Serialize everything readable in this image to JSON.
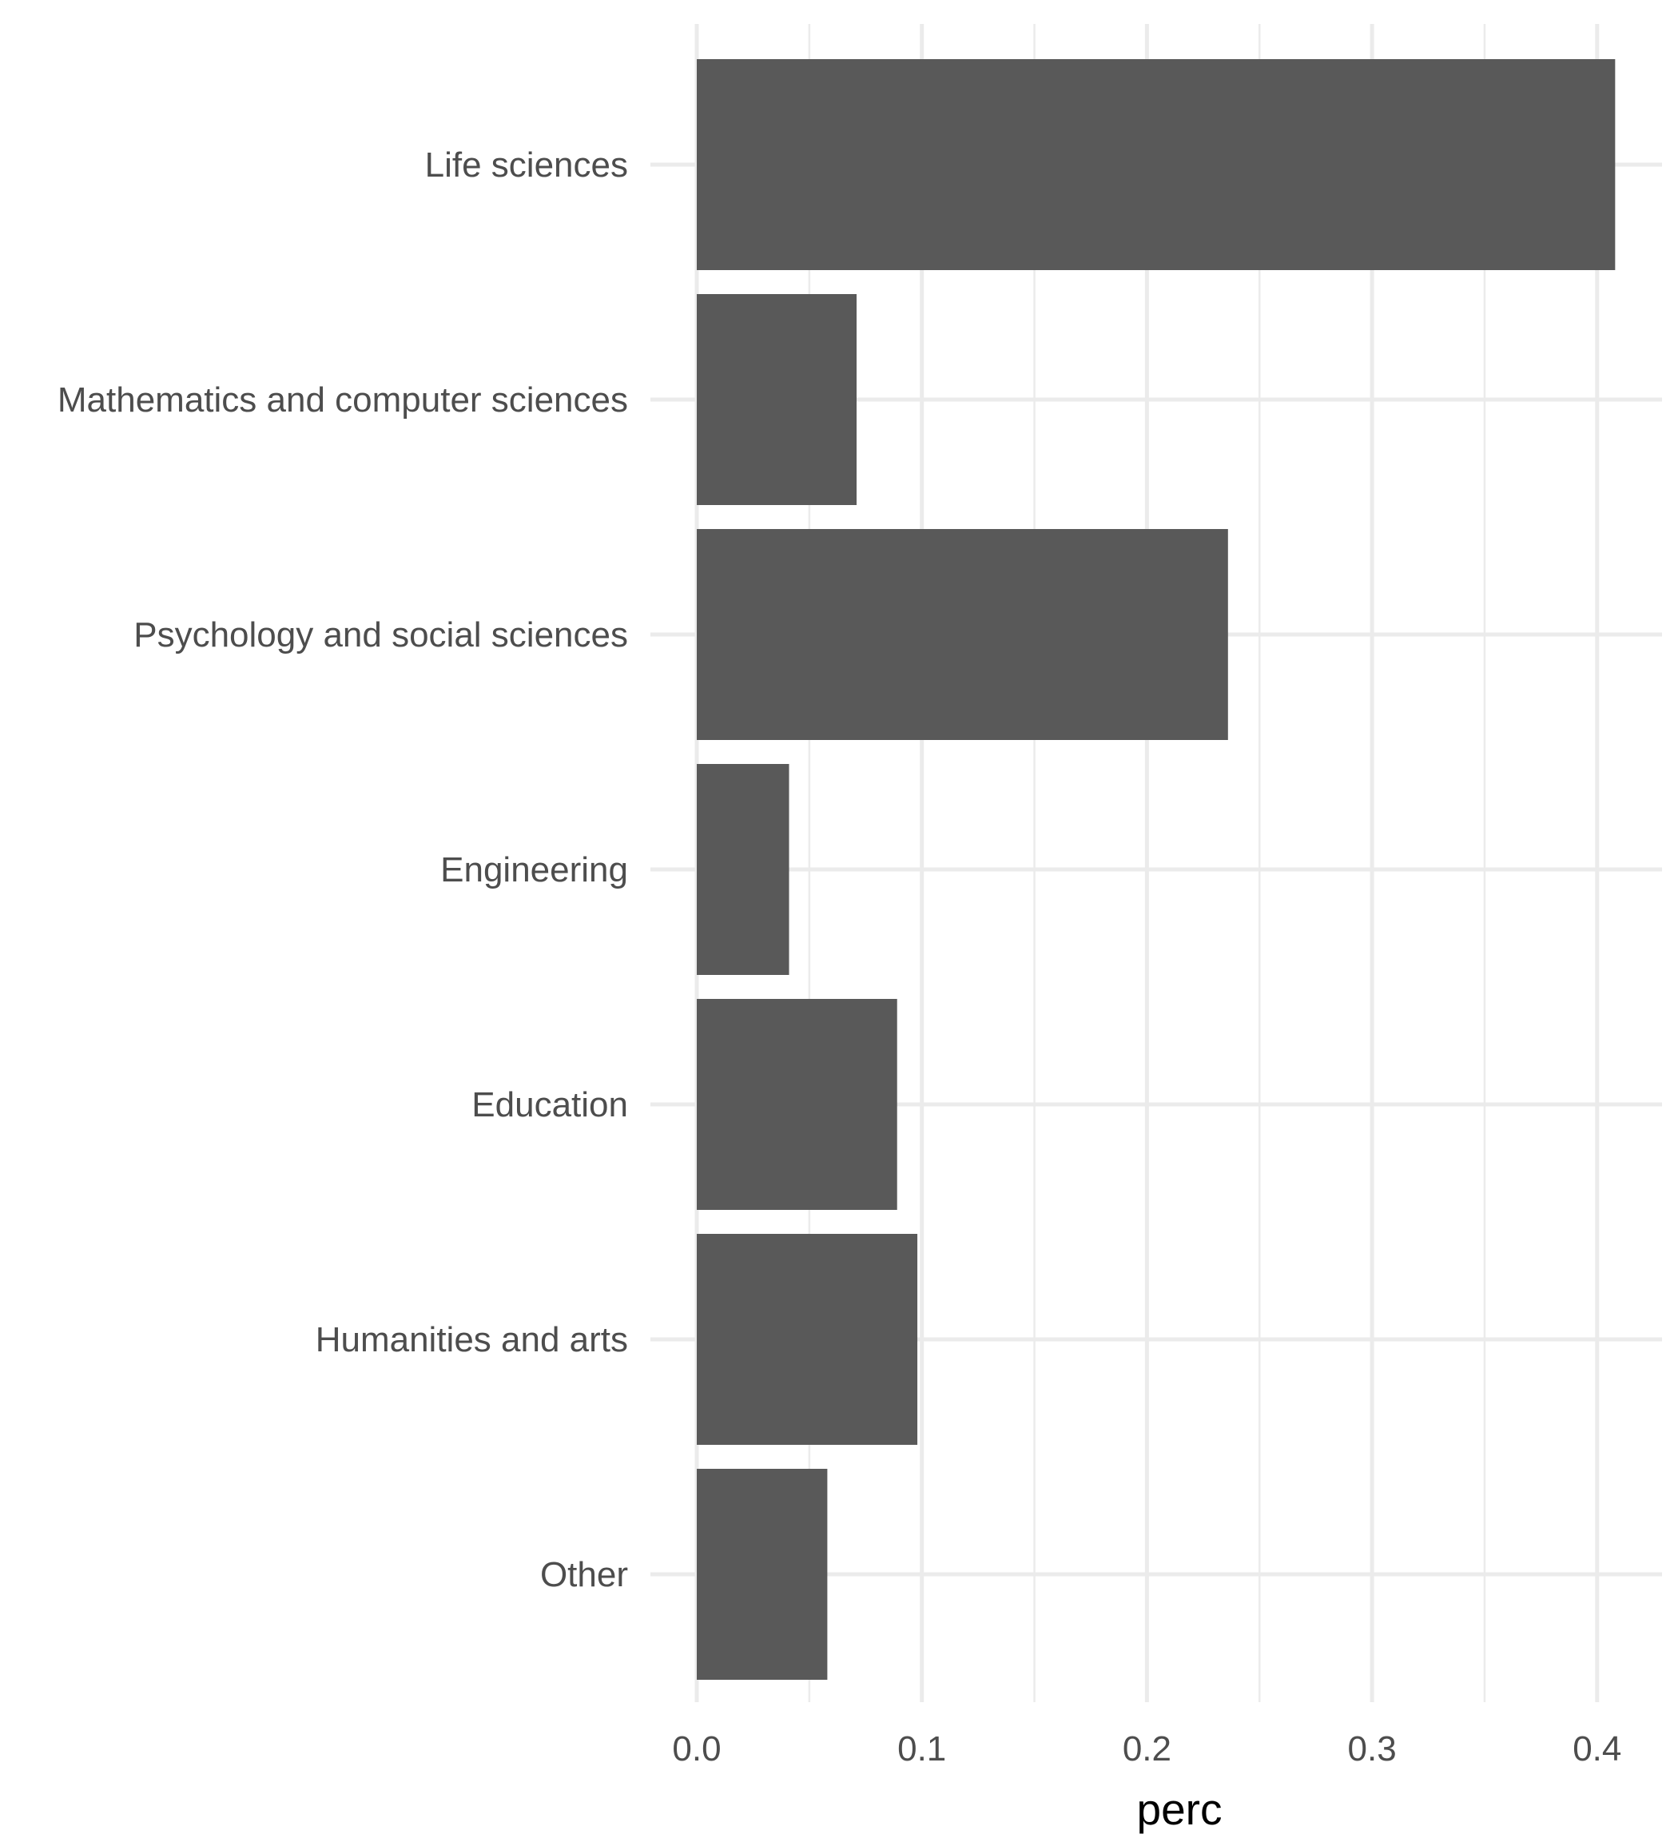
{
  "chart_data": {
    "type": "bar",
    "orientation": "horizontal",
    "categories": [
      "Life sciences",
      "Mathematics and computer sciences",
      "Psychology and social sciences",
      "Engineering",
      "Education",
      "Humanities and arts",
      "Other"
    ],
    "values": [
      0.408,
      0.071,
      0.236,
      0.041,
      0.089,
      0.098,
      0.058
    ],
    "xlabel": "perc",
    "ylabel": "",
    "title": "",
    "xlim": [
      0,
      0.43
    ],
    "xticks": [
      0.0,
      0.1,
      0.2,
      0.3,
      0.4
    ],
    "xtick_labels": [
      "0.0",
      "0.1",
      "0.2",
      "0.3",
      "0.4"
    ],
    "grid": true,
    "bar_color": "#595959",
    "grid_color": "#ebebeb"
  }
}
